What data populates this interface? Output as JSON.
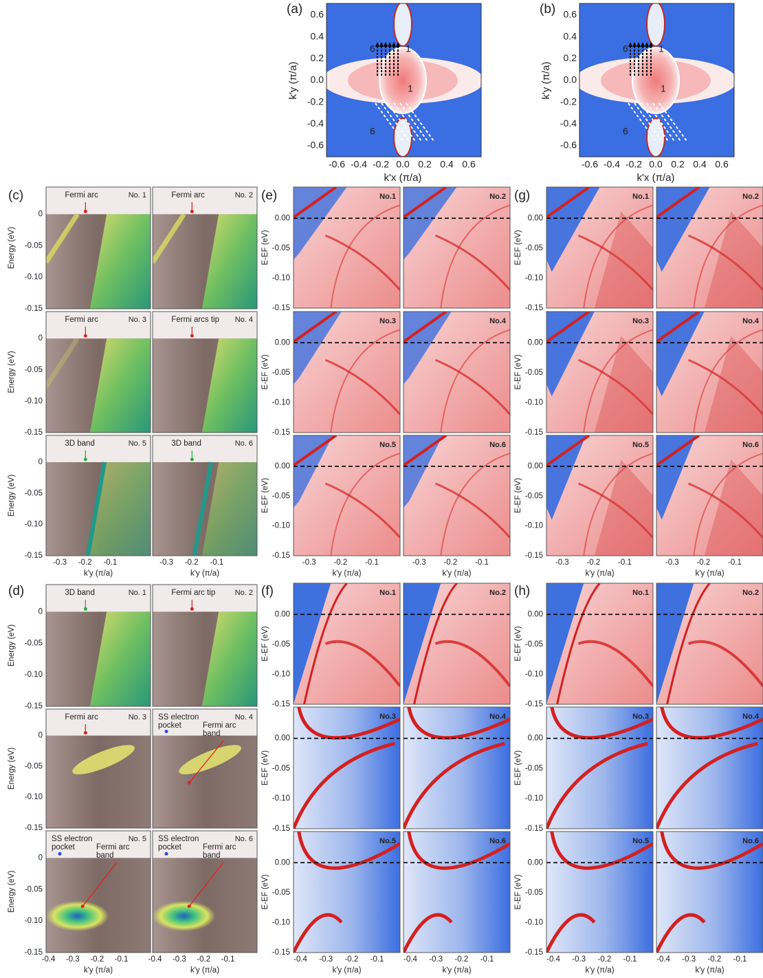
{
  "a": {
    "label": "(a)",
    "ylabel": "k'y (π/a)",
    "xlabel": "k'x (π/a)",
    "yticks": [
      "0.6",
      "0.4",
      "0.2",
      "0.0",
      "-0.2",
      "-0.4",
      "-0.6"
    ],
    "xticks": [
      "-0.6",
      "-0.4",
      "-0.2",
      "0.0",
      "0.2",
      "0.4",
      "0.6"
    ],
    "cut_labels": [
      "6",
      "1",
      "1",
      "6"
    ]
  },
  "b": {
    "label": "(b)",
    "ylabel": "k'y (π/a)",
    "xlabel": "k'x (π/a)",
    "yticks": [
      "0.6",
      "0.4",
      "0.2",
      "0.0",
      "-0.2",
      "-0.4",
      "-0.6"
    ],
    "xticks": [
      "-0.6",
      "-0.4",
      "-0.2",
      "0.0",
      "0.2",
      "0.4",
      "0.6"
    ],
    "cut_labels": [
      "6",
      "1",
      "1",
      "6"
    ]
  },
  "c": {
    "label": "(c)",
    "ylabel": "Energy (eV)",
    "xlabel": "k'y (π/a)",
    "yticks": [
      "0",
      "-0.05",
      "-0.10",
      "-0.15"
    ],
    "xticks": [
      "-0.3",
      "-0.2",
      "-0.1"
    ],
    "cuts": [
      {
        "no": "No. 1",
        "notes": [
          {
            "lines": [
              "Fermi arc"
            ],
            "color": "#e02020"
          }
        ]
      },
      {
        "no": "No. 2",
        "notes": [
          {
            "lines": [
              "Fermi arc"
            ],
            "color": "#e02020"
          }
        ]
      },
      {
        "no": "No. 3",
        "notes": [
          {
            "lines": [
              "Fermi arc"
            ],
            "color": "#e02020"
          }
        ]
      },
      {
        "no": "No. 4",
        "notes": [
          {
            "lines": [
              "Fermi arcs tip"
            ],
            "color": "#e02020"
          }
        ]
      },
      {
        "no": "No. 5",
        "notes": [
          {
            "lines": [
              "3D band"
            ],
            "color": "#20b040"
          }
        ]
      },
      {
        "no": "No. 6",
        "notes": [
          {
            "lines": [
              "3D band"
            ],
            "color": "#20b040"
          }
        ]
      }
    ]
  },
  "d": {
    "label": "(d)",
    "ylabel": "Energy (eV)",
    "xlabel": "k'y (π/a)",
    "yticks": [
      "0",
      "-0.05",
      "-0.10",
      "-0.15"
    ],
    "xticks": [
      "-0.4",
      "-0.3",
      "-0.2",
      "-0.1"
    ],
    "cuts": [
      {
        "no": "No. 1",
        "notes": [
          {
            "lines": [
              "3D band"
            ],
            "color": "#20b040"
          }
        ]
      },
      {
        "no": "No. 2",
        "notes": [
          {
            "lines": [
              "Fermi arc tip"
            ],
            "color": "#e02020"
          }
        ]
      },
      {
        "no": "No. 3",
        "notes": [
          {
            "lines": [
              "Fermi arc"
            ],
            "color": "#e02020"
          }
        ]
      },
      {
        "no": "No. 4",
        "notes": [
          {
            "lines": [
              "SS electron",
              "pocket"
            ],
            "color": "#2050e0"
          },
          {
            "lines": [
              "Fermi arc",
              "band"
            ],
            "color": "#e02020"
          }
        ]
      },
      {
        "no": "No. 5",
        "notes": [
          {
            "lines": [
              "SS electron",
              "pocket"
            ],
            "color": "#2050e0"
          },
          {
            "lines": [
              "Fermi arc",
              "band"
            ],
            "color": "#e02020"
          }
        ]
      },
      {
        "no": "No. 6",
        "notes": [
          {
            "lines": [
              "SS electron",
              "pocket"
            ],
            "color": "#2050e0"
          },
          {
            "lines": [
              "Fermi arc",
              "band"
            ],
            "color": "#e02020"
          }
        ]
      }
    ]
  },
  "e": {
    "label": "(e)",
    "ylabel": "E-EF (eV)",
    "xlabel": "k'y (π/a)",
    "yticks": [
      "0.00",
      "-0.05",
      "-0.10",
      "-0.15"
    ],
    "xticks": [
      "-0.3",
      "-0.2",
      "-0.1"
    ],
    "cuts": [
      "No.1",
      "No.2",
      "No.3",
      "No.4",
      "No.5",
      "No.6"
    ]
  },
  "g": {
    "label": "(g)",
    "ylabel": "E-EF (eV)",
    "xlabel": "k'y (π/a)",
    "yticks": [
      "0.00",
      "-0.05",
      "-0.10",
      "-0.15"
    ],
    "xticks": [
      "-0.3",
      "-0.2",
      "-0.1"
    ],
    "cuts": [
      "No.1",
      "No.2",
      "No.3",
      "No.4",
      "No.5",
      "No.6"
    ]
  },
  "f": {
    "label": "(f)",
    "ylabel": "E-EF (eV)",
    "xlabel": "k'y (π/a)",
    "yticks": [
      "0.00",
      "-0.05",
      "-0.10",
      "-0.15"
    ],
    "xticks": [
      "-0.4",
      "-0.3",
      "-0.2",
      "-0.1"
    ],
    "cuts": [
      "No.1",
      "No.2",
      "No.3",
      "No.4",
      "No.5",
      "No.6"
    ]
  },
  "h": {
    "label": "(h)",
    "ylabel": "E-EF (eV)",
    "xlabel": "k'y (π/a)",
    "yticks": [
      "0.00",
      "-0.05",
      "-0.10",
      "-0.15"
    ],
    "xticks": [
      "-0.4",
      "-0.3",
      "-0.2",
      "-0.1"
    ],
    "cuts": [
      "No.1",
      "No.2",
      "No.3",
      "No.4",
      "No.5",
      "No.6"
    ]
  }
}
